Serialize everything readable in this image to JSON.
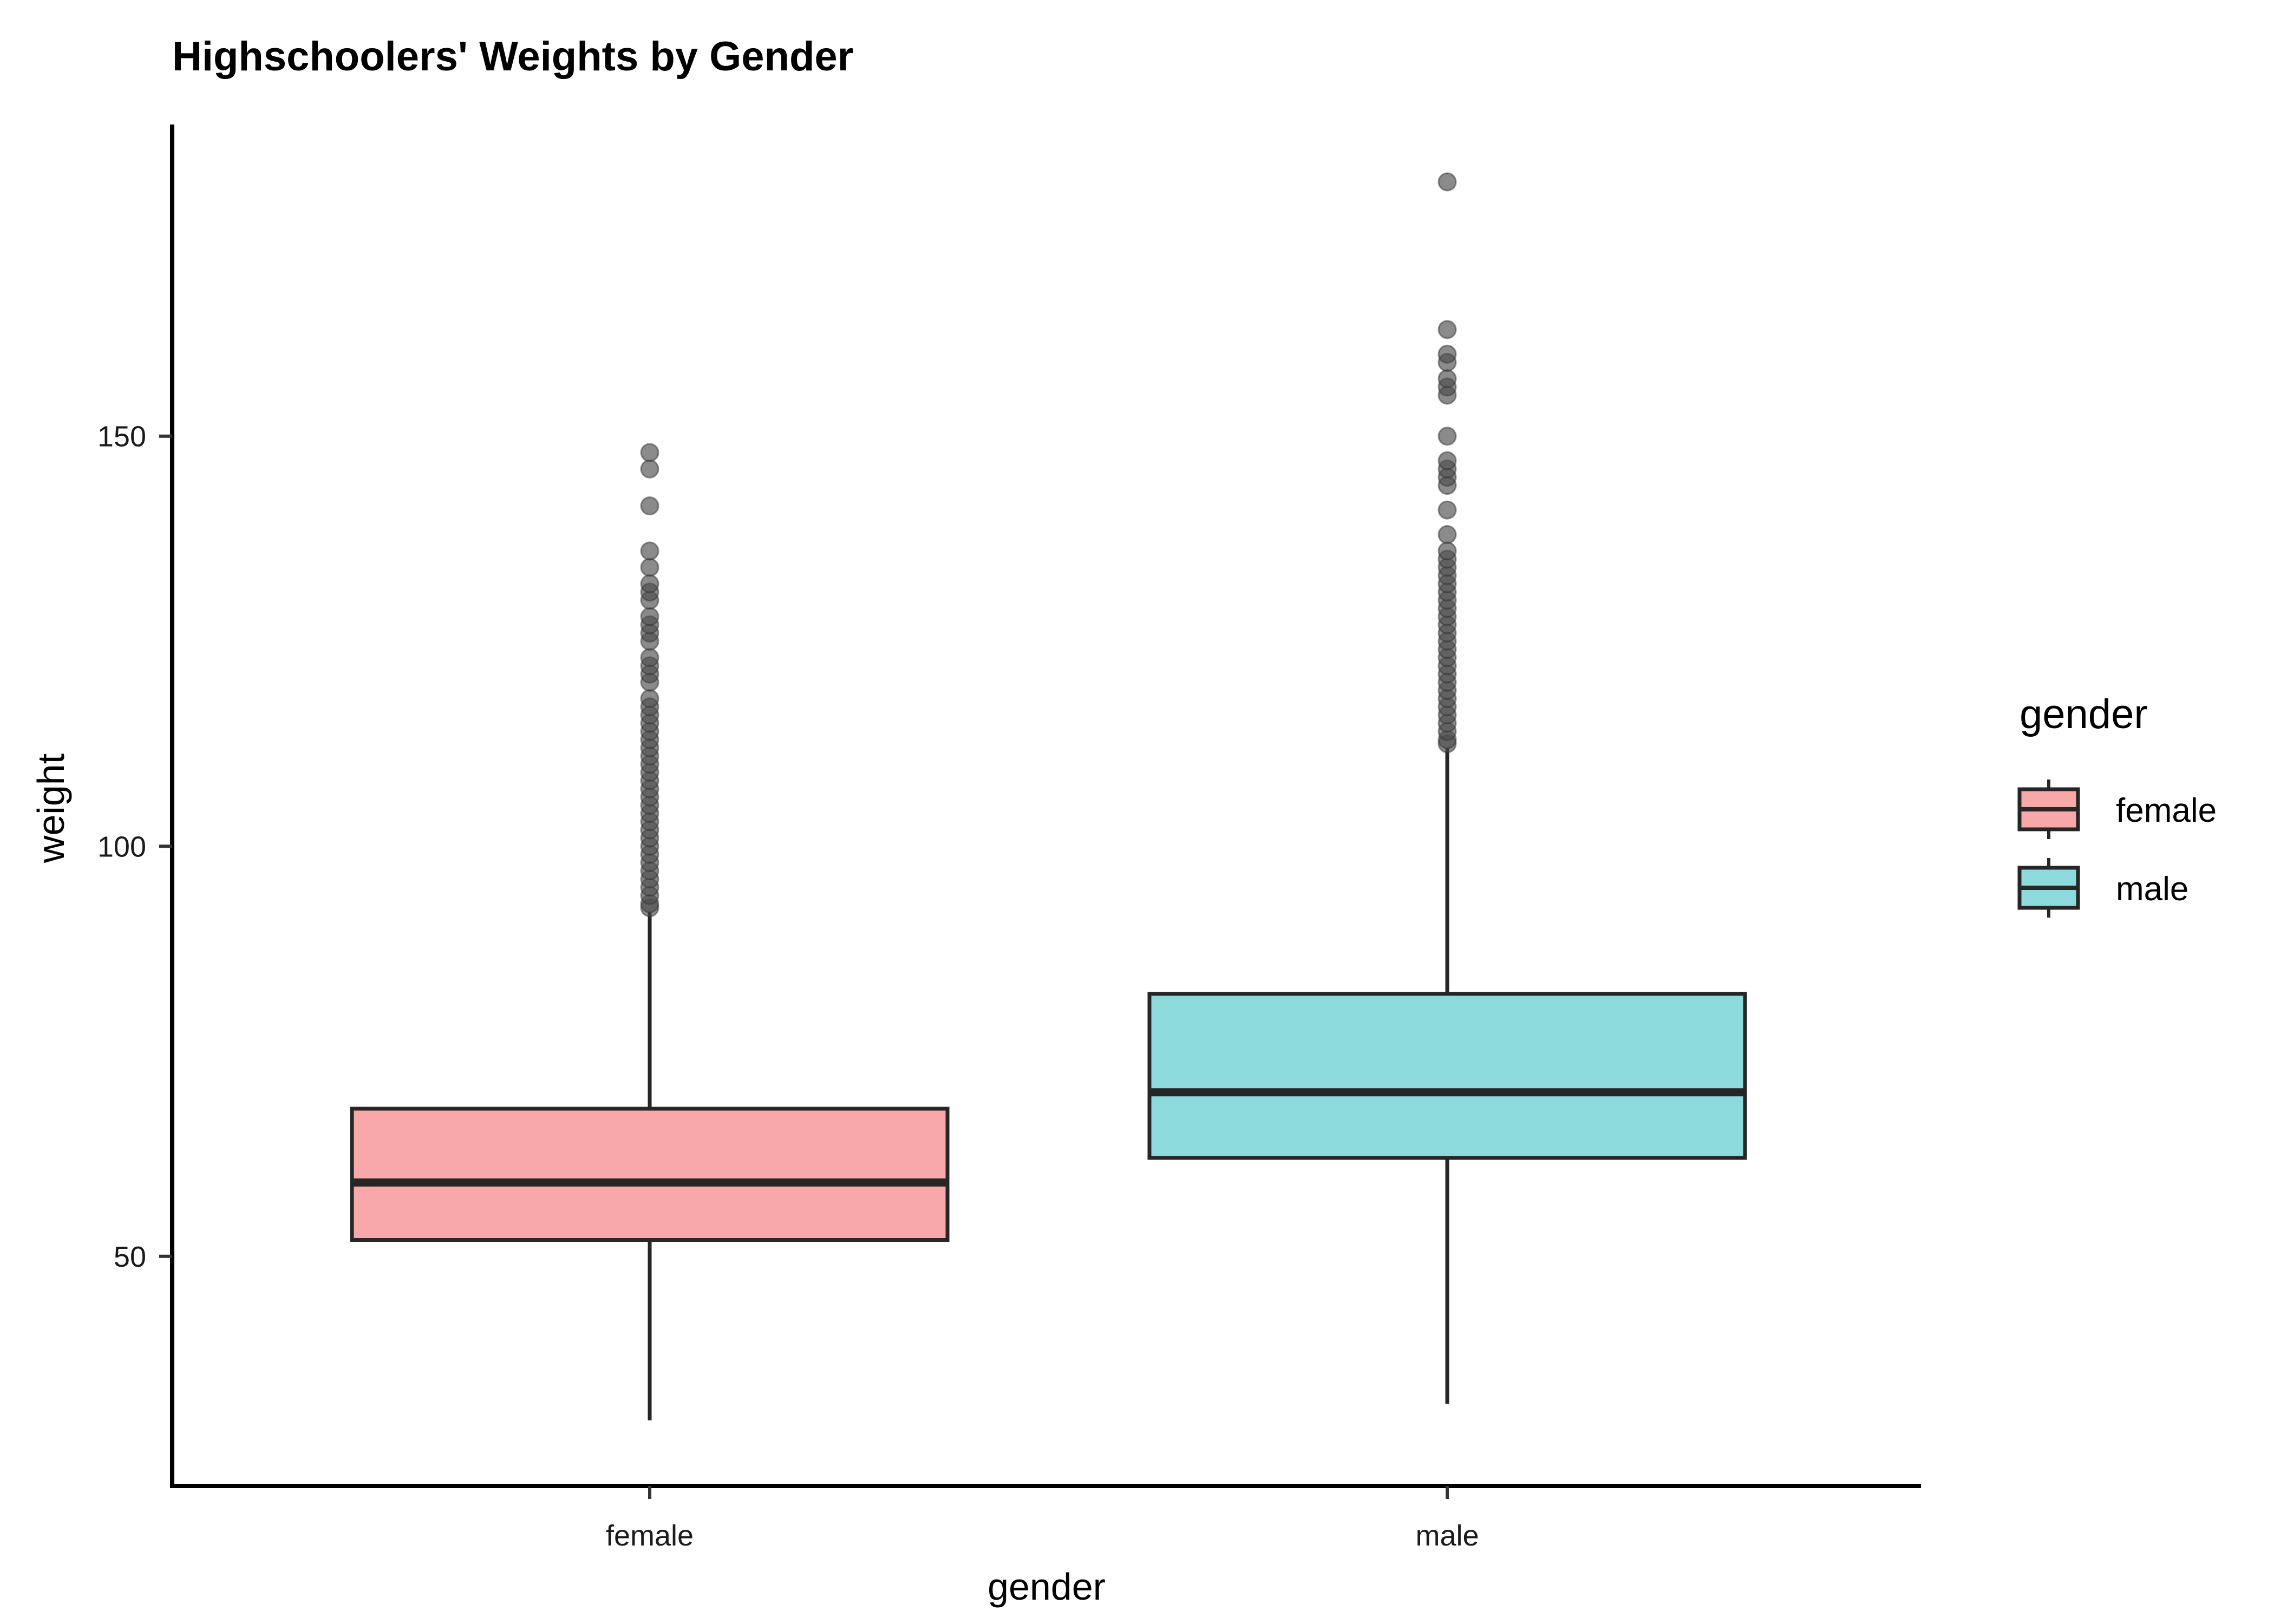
{
  "chart_data": {
    "type": "boxplot",
    "title": "Highschoolers' Weights by Gender",
    "xlabel": "gender",
    "ylabel": "weight",
    "categories": [
      "female",
      "male"
    ],
    "ylim": [
      22,
      188
    ],
    "yticks": [
      50,
      100,
      150
    ],
    "colors": {
      "female": "#f8a8a8",
      "male": "#8cdadc",
      "outline": "#262626",
      "outlier": "#4d4d4d"
    },
    "grid": false,
    "legend": {
      "title": "gender",
      "position": "right",
      "items": [
        "female",
        "male"
      ]
    },
    "series": [
      {
        "name": "female",
        "whisker_low": 30,
        "q1": 52,
        "median": 59,
        "q3": 68,
        "whisker_high": 92,
        "outliers": [
          92.5,
          93,
          94,
          95,
          96,
          97,
          98,
          99,
          100,
          101,
          102,
          103,
          104,
          105,
          106,
          107,
          108,
          109,
          110,
          111,
          112,
          113,
          114,
          115,
          116,
          117,
          118,
          120,
          121,
          122,
          123,
          125,
          126,
          127,
          128,
          130,
          131,
          132,
          134,
          136,
          141.5,
          146,
          148
        ]
      },
      {
        "name": "male",
        "whisker_low": 32,
        "q1": 62,
        "median": 70,
        "q3": 82,
        "whisker_high": 112,
        "outliers": [
          112.5,
          113,
          114,
          115,
          116,
          117,
          118,
          119,
          120,
          121,
          122,
          123,
          124,
          125,
          126,
          127,
          128,
          129,
          130,
          131,
          132,
          133,
          134,
          135,
          136,
          138,
          141,
          144,
          145,
          146,
          147,
          150,
          155,
          156,
          157,
          159,
          160,
          163,
          181
        ]
      }
    ]
  }
}
